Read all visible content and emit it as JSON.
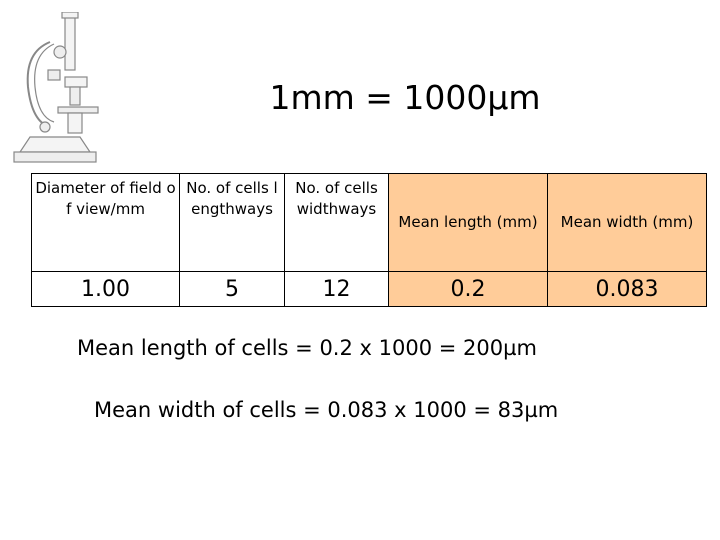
{
  "title": "1mm = 1000µm",
  "table": {
    "header": [
      "Diameter of field of view/mm",
      "No. of cells lengthways",
      "No. of cells widthways",
      "Mean length (mm)",
      "Mean width (mm)"
    ],
    "rows": [
      [
        "1.00",
        "5",
        "12",
        "0.2",
        "0.083"
      ]
    ]
  },
  "notes": [
    "Mean length of cells = 0.2 x 1000 = 200µm",
    "Mean width of cells = 0.083 x 1000 = 83µm"
  ]
}
